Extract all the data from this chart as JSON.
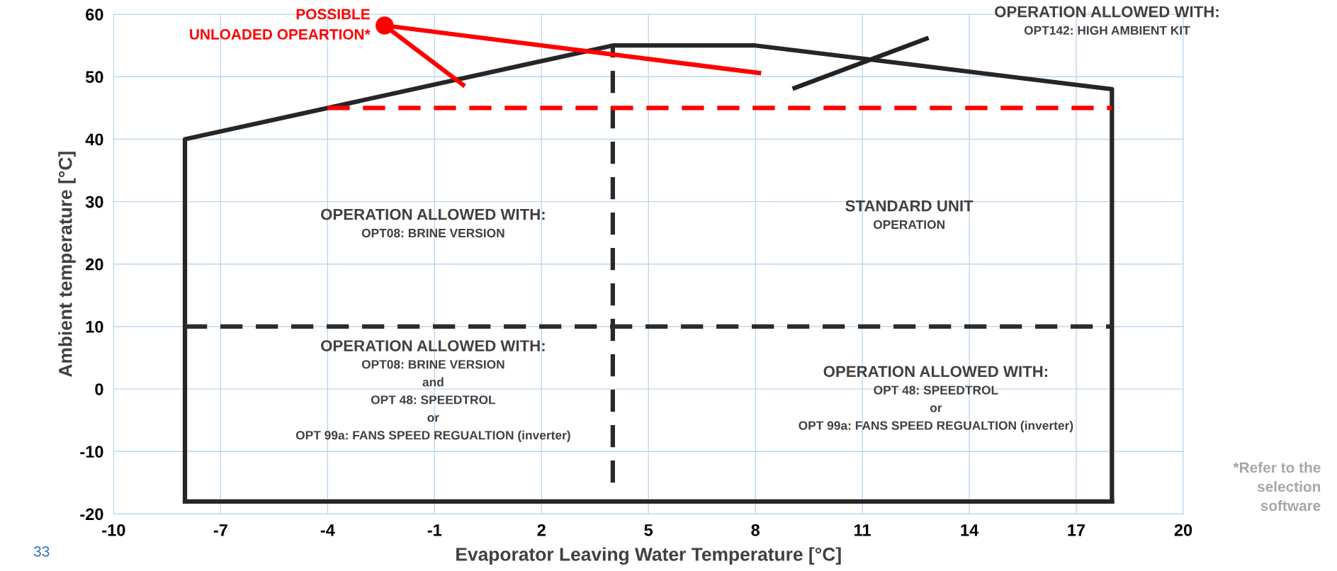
{
  "chart_data": {
    "type": "line",
    "xlabel": "Evaporator Leaving Water Temperature [°C]",
    "ylabel": "Ambient temperature [°C]",
    "xlim": [
      -10,
      20
    ],
    "xticks": [
      -10,
      -7,
      -4,
      -1,
      2,
      5,
      8,
      11,
      14,
      17,
      20
    ],
    "ylim": [
      -20,
      60
    ],
    "yticks": [
      -20,
      -10,
      0,
      10,
      20,
      30,
      40,
      50,
      60
    ],
    "grid": true,
    "legend": false,
    "marker": "none",
    "series": [
      {
        "color": "#262626",
        "line_style": "solid",
        "x": [
          -8,
          -8,
          4,
          8,
          18,
          18
        ],
        "values": [
          -18,
          40,
          55,
          55,
          48,
          -18
        ]
      },
      {
        "color": "#262626",
        "line_style": "solid",
        "x": [
          -8,
          18
        ],
        "values": [
          -18,
          -18
        ]
      },
      {
        "color": "#292929",
        "line_style": "dashed",
        "x": [
          4,
          4
        ],
        "values": [
          -15,
          55
        ]
      },
      {
        "color": "#2c2c2c",
        "line_style": "dashed",
        "x": [
          -8,
          18
        ],
        "values": [
          10,
          10
        ]
      },
      {
        "color": "#ff0000",
        "line_style": "dashed",
        "x": [
          -4,
          18
        ],
        "values": [
          45,
          45
        ]
      },
      {
        "name": "POSSIBLE\nUNLOADED OPEARTION*",
        "color": "#ff0000",
        "line_style": "solid",
        "x": [
          -0.2,
          -2.4,
          8.1
        ],
        "values": [
          48.7,
          58.2,
          50.6
        ]
      },
      {
        "type": "scatter",
        "marker": "circle",
        "color": "#ff0000",
        "x": [
          -2.4
        ],
        "values": [
          58.2
        ]
      },
      {
        "color": "#232323",
        "line_style": "solid",
        "x": [
          9.1,
          12.8
        ],
        "values": [
          48.2,
          56.1
        ]
      }
    ],
    "annotations": [
      "OPERATION ALLOWED WITH:\nOPT142: HIGH AMBIENT KIT",
      "OPERATION ALLOWED WITH:\nOPT08: BRINE VERSION",
      "STANDARD UNIT\nOPERATION",
      "OPERATION ALLOWED WITH:\nOPT08: BRINE VERSION\nand\nOPT 48: SPEEDTROL\nor\nOPT 99a: FANS SPEED REGUALTION (inverter)",
      "OPERATION ALLOWED WITH:\nOPT 48: SPEEDTROL\nor\nOPT 99a: FANS SPEED REGUALTION (inverter)",
      "*Refer to the\nselection\nsoftware",
      "33"
    ]
  }
}
